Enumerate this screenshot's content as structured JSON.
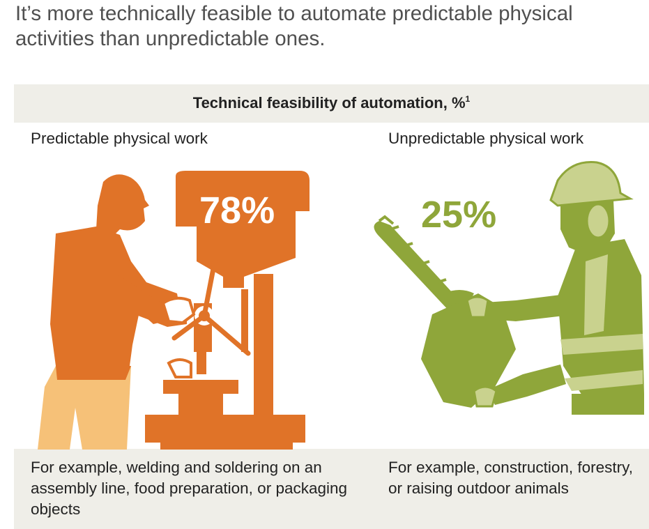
{
  "headline": "It’s more technically feasible to automate predictable physical activities than unpredictable ones.",
  "band": {
    "title": "Technical feasibility of automation, %",
    "footnote_mark": "1"
  },
  "columns": {
    "left": {
      "heading": "Predictable physical work",
      "percent": "78%",
      "caption": "For example, welding and soldering on an assembly line, food preparation, or packaging objects",
      "illustration": "factory-worker-drill-press-illustration",
      "color": "#e07328"
    },
    "right": {
      "heading": "Unpredictable physical work",
      "percent": "25%",
      "caption": "For example, construction, forestry, or raising outdoor animals",
      "illustration": "lumberjack-chainsaw-illustration",
      "color": "#8fa63a"
    }
  },
  "colors": {
    "band_background": "#efeee8",
    "headline_text": "#505050",
    "orange": "#e07328",
    "orange_light": "#f6c178",
    "olive": "#8fa63a",
    "olive_light": "#c9d28e"
  }
}
